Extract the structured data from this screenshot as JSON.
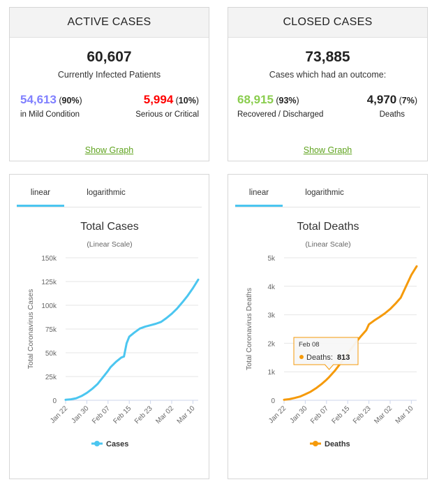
{
  "active_cases": {
    "title": "ACTIVE CASES",
    "total": "60,607",
    "subtitle": "Currently Infected Patients",
    "mild": {
      "value": "54,613",
      "pct": "90%",
      "label": "in Mild Condition",
      "color": "#8080ff"
    },
    "serious": {
      "value": "5,994",
      "pct": "10%",
      "label": "Serious or Critical",
      "color": "#ff0000"
    },
    "link": "Show Graph"
  },
  "closed_cases": {
    "title": "CLOSED CASES",
    "total": "73,885",
    "subtitle": "Cases which had an outcome:",
    "recovered": {
      "value": "68,915",
      "pct": "93%",
      "label": "Recovered / Discharged",
      "color": "#8acd4e"
    },
    "deaths": {
      "value": "4,970",
      "pct": "7%",
      "label": "Deaths",
      "color": "#222222"
    },
    "link": "Show Graph"
  },
  "cases_panel": {
    "tabs": [
      "linear",
      "logarithmic"
    ],
    "active_tab": "linear"
  },
  "deaths_panel": {
    "tabs": [
      "linear",
      "logarithmic"
    ],
    "active_tab": "linear",
    "tooltip": {
      "date": "Feb 08",
      "series": "Deaths",
      "value": "813"
    }
  },
  "chart_data": [
    {
      "type": "line",
      "title": "Total Cases",
      "subtitle": "(Linear Scale)",
      "ylabel": "Total Coronavirus Cases",
      "xlabel": "",
      "series_name": "Cases",
      "color": "#4bc6f0",
      "ylim": [
        0,
        150000
      ],
      "yticks": [
        0,
        25000,
        50000,
        75000,
        100000,
        125000,
        150000
      ],
      "ytick_labels": [
        "0",
        "25k",
        "50k",
        "75k",
        "100k",
        "125k",
        "150k"
      ],
      "xticks": [
        "Jan 22",
        "Jan 30",
        "Feb 07",
        "Feb 15",
        "Feb 23",
        "Mar 02",
        "Mar 10"
      ],
      "xtick_index": [
        0,
        8,
        16,
        24,
        32,
        40,
        48
      ],
      "x_count": 51,
      "points": [
        [
          0,
          550
        ],
        [
          2,
          1000
        ],
        [
          4,
          2100
        ],
        [
          6,
          4500
        ],
        [
          8,
          7800
        ],
        [
          10,
          12000
        ],
        [
          12,
          17000
        ],
        [
          14,
          24000
        ],
        [
          16,
          31000
        ],
        [
          17,
          35000
        ],
        [
          19,
          40500
        ],
        [
          21,
          45000
        ],
        [
          22,
          46000
        ],
        [
          23,
          60000
        ],
        [
          24,
          67000
        ],
        [
          26,
          71500
        ],
        [
          28,
          75500
        ],
        [
          30,
          77500
        ],
        [
          32,
          79000
        ],
        [
          34,
          80500
        ],
        [
          36,
          82500
        ],
        [
          38,
          86500
        ],
        [
          40,
          91000
        ],
        [
          42,
          96500
        ],
        [
          44,
          103000
        ],
        [
          46,
          110000
        ],
        [
          48,
          118000
        ],
        [
          50,
          127000
        ]
      ]
    },
    {
      "type": "line",
      "title": "Total Deaths",
      "subtitle": "(Linear Scale)",
      "ylabel": "Total Coronavirus Deaths",
      "xlabel": "",
      "series_name": "Deaths",
      "color": "#f59a0a",
      "ylim": [
        0,
        5000
      ],
      "yticks": [
        0,
        1000,
        2000,
        3000,
        4000,
        5000
      ],
      "ytick_labels": [
        "0",
        "1k",
        "2k",
        "3k",
        "4k",
        "5k"
      ],
      "xticks": [
        "Jan 22",
        "Jan 30",
        "Feb 07",
        "Feb 15",
        "Feb 23",
        "Mar 02",
        "Mar 10"
      ],
      "xtick_index": [
        0,
        8,
        16,
        24,
        32,
        40,
        48
      ],
      "x_count": 51,
      "points": [
        [
          0,
          17
        ],
        [
          2,
          40
        ],
        [
          4,
          80
        ],
        [
          6,
          130
        ],
        [
          8,
          210
        ],
        [
          10,
          300
        ],
        [
          12,
          420
        ],
        [
          14,
          560
        ],
        [
          16,
          720
        ],
        [
          17,
          813
        ],
        [
          19,
          1020
        ],
        [
          21,
          1260
        ],
        [
          23,
          1510
        ],
        [
          25,
          1770
        ],
        [
          27,
          2020
        ],
        [
          29,
          2250
        ],
        [
          31,
          2460
        ],
        [
          32,
          2665
        ],
        [
          34,
          2800
        ],
        [
          36,
          2920
        ],
        [
          38,
          3050
        ],
        [
          40,
          3200
        ],
        [
          42,
          3390
        ],
        [
          44,
          3600
        ],
        [
          46,
          4000
        ],
        [
          48,
          4400
        ],
        [
          50,
          4700
        ]
      ]
    }
  ]
}
